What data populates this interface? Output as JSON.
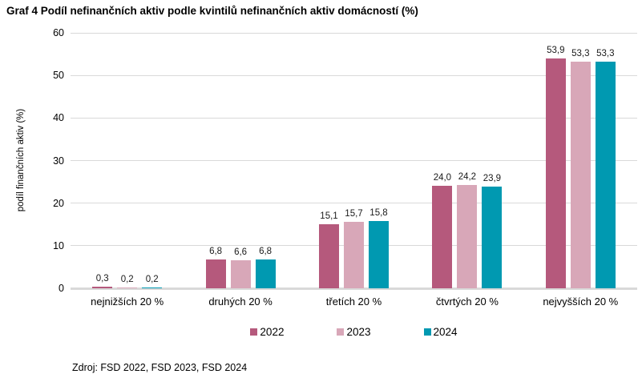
{
  "title": "Graf 4 Podíl nefinančních aktiv podle kvintilů nefinančních aktiv domácností (%)",
  "source": "Zdroj: FSD 2022, FSD 2023, FSD 2024",
  "colors": {
    "series_2022": "#b5597c",
    "series_2023": "#d8a7b8",
    "series_2024": "#0099b1",
    "gridline": "#d9d9d9",
    "text": "#000000"
  },
  "chart_data": {
    "type": "bar",
    "title": "Graf 4 Podíl nefinančních aktiv podle kvintilů nefinančních aktiv domácností (%)",
    "xlabel": "",
    "ylabel": "podíl finančních aktiv (%)",
    "ylim": [
      0,
      60
    ],
    "yticks": [
      0,
      10,
      20,
      30,
      40,
      50,
      60
    ],
    "grid": true,
    "legend_position": "bottom",
    "categories": [
      "nejnižších 20 %",
      "druhých 20 %",
      "třetích 20 %",
      "čtvrtých 20 %",
      "nejvyšších 20 %"
    ],
    "series": [
      {
        "name": "2022",
        "color": "#b5597c",
        "values": [
          0.3,
          6.8,
          15.1,
          24.0,
          53.9
        ],
        "labels": [
          "0,3",
          "6,8",
          "15,1",
          "24,0",
          "53,9"
        ]
      },
      {
        "name": "2023",
        "color": "#d8a7b8",
        "values": [
          0.2,
          6.6,
          15.7,
          24.2,
          53.3
        ],
        "labels": [
          "0,2",
          "6,6",
          "15,7",
          "24,2",
          "53,3"
        ]
      },
      {
        "name": "2024",
        "color": "#0099b1",
        "values": [
          0.2,
          6.8,
          15.8,
          23.9,
          53.3
        ],
        "labels": [
          "0,2",
          "6,8",
          "15,8",
          "23,9",
          "53,3"
        ]
      }
    ]
  }
}
